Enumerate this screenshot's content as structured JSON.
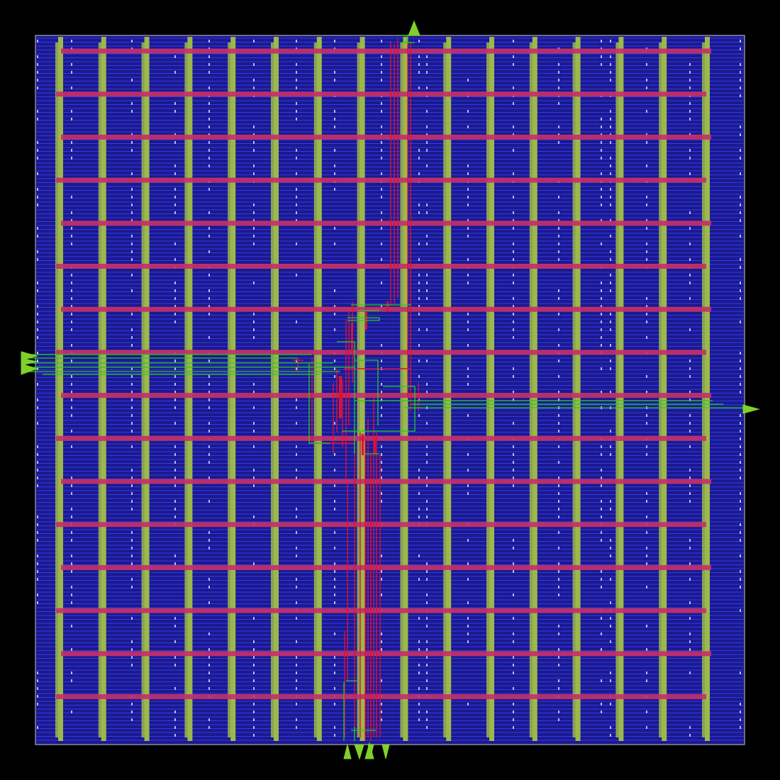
{
  "view": {
    "type": "ic-layout-view"
  },
  "colors": {
    "background": "#000000",
    "die_fill": "#1a1a8c",
    "die_outline": "#8a8aa8",
    "std_cell_row_line": "#3a3aff",
    "cell_edge": "#b8b8ff",
    "vertical_power_strap": "#9db84a",
    "horizontal_power_strap": "#c4306a",
    "signal_route_metal1": "#22cc22",
    "signal_route_metal2": "#dd1133",
    "io_pin": "#7fd12a"
  },
  "power_grid": {
    "vertical_strap_count": 16,
    "horizontal_strap_count": 16
  },
  "io_pins": [
    {
      "name": "top-pin",
      "side": "top"
    },
    {
      "name": "left-pin-1",
      "side": "left"
    },
    {
      "name": "left-pin-2",
      "side": "left"
    },
    {
      "name": "left-pin-3",
      "side": "left"
    },
    {
      "name": "right-pin",
      "side": "right"
    },
    {
      "name": "bottom-pin-1",
      "side": "bottom"
    },
    {
      "name": "bottom-pin-2",
      "side": "bottom"
    },
    {
      "name": "bottom-pin-3",
      "side": "bottom"
    },
    {
      "name": "bottom-pin-4",
      "side": "bottom"
    },
    {
      "name": "bottom-pin-5",
      "side": "bottom"
    }
  ]
}
